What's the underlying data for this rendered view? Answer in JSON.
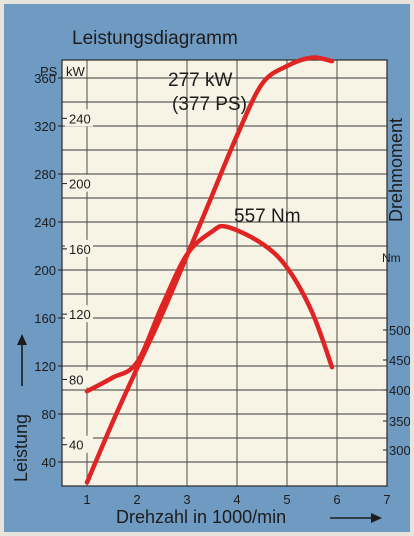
{
  "chart_data": {
    "type": "line",
    "title": "Leistungsdiagramm",
    "xlabel": "Drehzahl in 1000/min",
    "xlim": [
      0.5,
      7
    ],
    "x_ticks": [
      "1",
      "2",
      "3",
      "4",
      "5",
      "6",
      "7"
    ],
    "y_left_outer": {
      "unit": "PS",
      "ylim": [
        20,
        375
      ],
      "ticks": [
        "40",
        "80",
        "120",
        "160",
        "200",
        "240",
        "280",
        "320",
        "360"
      ]
    },
    "y_left_inner": {
      "unit": "kW",
      "ticks": [
        "40",
        "80",
        "120",
        "160",
        "200",
        "240"
      ]
    },
    "y_left_label": "Leistung",
    "y_right": {
      "label": "Drehmoment",
      "unit": "Nm",
      "ticks": [
        "300",
        "350",
        "400",
        "450",
        "500"
      ]
    },
    "series": [
      {
        "key": "power",
        "unit": "PS",
        "color": "#e02424",
        "x": [
          1.0,
          1.5,
          2.0,
          2.5,
          3.0,
          3.5,
          4.0,
          4.5,
          5.0,
          5.5,
          5.9
        ],
        "values": [
          23,
          72,
          118,
          163,
          212,
          262,
          312,
          355,
          370,
          377,
          374
        ]
      },
      {
        "key": "torque",
        "unit": "PS",
        "color": "#e02424",
        "x": [
          1.0,
          1.5,
          2.0,
          2.5,
          3.0,
          3.5,
          3.8,
          4.5,
          5.0,
          5.5,
          5.9
        ],
        "values": [
          99,
          110,
          123,
          170,
          213,
          232,
          236,
          222,
          202,
          165,
          119
        ]
      }
    ],
    "annotations": [
      {
        "line1": "277 kW",
        "line2": "(377 PS)"
      },
      {
        "text": "557 Nm"
      }
    ],
    "grid": true
  }
}
